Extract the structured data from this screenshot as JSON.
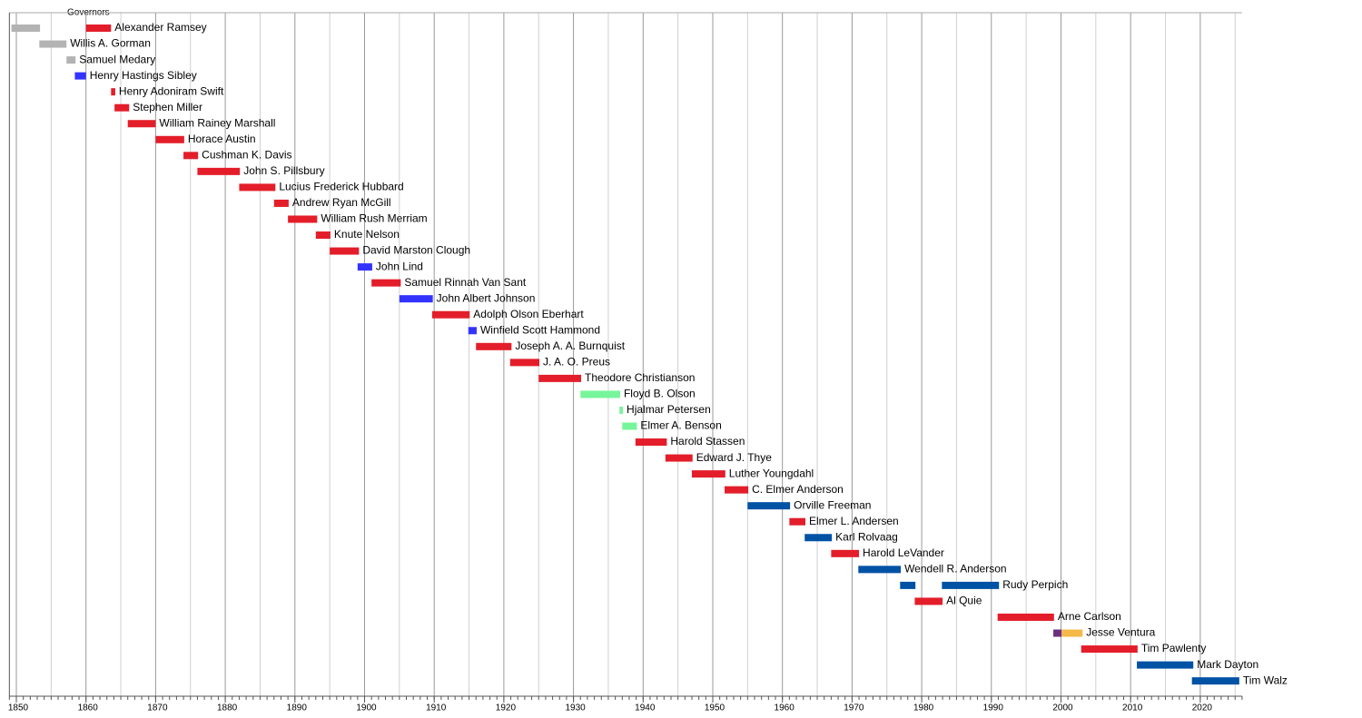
{
  "chart_data": {
    "type": "timeline",
    "title": "Governors",
    "xlim": [
      1849,
      2026
    ],
    "xticks": [
      1850,
      1860,
      1870,
      1880,
      1890,
      1900,
      1910,
      1920,
      1930,
      1940,
      1950,
      1960,
      1970,
      1980,
      1990,
      2000,
      2010,
      2020
    ],
    "xminorticks": [
      1855,
      1865,
      1875,
      1885,
      1895,
      1905,
      1915,
      1925,
      1935,
      1945,
      1955,
      1965,
      1975,
      1985,
      1995,
      2005,
      2015,
      2025
    ],
    "tick_step": 1,
    "grid": true,
    "rows": [
      {
        "label": "Alexander Ramsey",
        "segments": [
          {
            "start": 1849.3,
            "end": 1853.4,
            "color": "#b3b3b3"
          },
          {
            "start": 1860.0,
            "end": 1863.6,
            "color": "#e31e2a"
          }
        ]
      },
      {
        "label": "Willis A. Gorman",
        "segments": [
          {
            "start": 1853.3,
            "end": 1857.2,
            "color": "#b3b3b3"
          }
        ]
      },
      {
        "label": "Samuel Medary",
        "segments": [
          {
            "start": 1857.2,
            "end": 1858.5,
            "color": "#b3b3b3"
          }
        ]
      },
      {
        "label": "Henry Hastings Sibley",
        "segments": [
          {
            "start": 1858.4,
            "end": 1860.0,
            "color": "#3333ff"
          }
        ]
      },
      {
        "label": "Henry Adoniram Swift",
        "segments": [
          {
            "start": 1863.6,
            "end": 1864.2,
            "color": "#e31e2a"
          }
        ]
      },
      {
        "label": "Stephen Miller",
        "segments": [
          {
            "start": 1864.1,
            "end": 1866.2,
            "color": "#e31e2a"
          }
        ]
      },
      {
        "label": "William Rainey Marshall",
        "segments": [
          {
            "start": 1866.0,
            "end": 1870.0,
            "color": "#e31e2a"
          }
        ]
      },
      {
        "label": "Horace Austin",
        "segments": [
          {
            "start": 1870.0,
            "end": 1874.1,
            "color": "#e31e2a"
          }
        ]
      },
      {
        "label": "Cushman K. Davis",
        "segments": [
          {
            "start": 1874.0,
            "end": 1876.1,
            "color": "#e31e2a"
          }
        ]
      },
      {
        "label": "John S. Pillsbury",
        "segments": [
          {
            "start": 1876.0,
            "end": 1882.1,
            "color": "#e31e2a"
          }
        ]
      },
      {
        "label": "Lucius Frederick Hubbard",
        "segments": [
          {
            "start": 1882.0,
            "end": 1887.2,
            "color": "#e31e2a"
          }
        ]
      },
      {
        "label": "Andrew Ryan McGill",
        "segments": [
          {
            "start": 1887.0,
            "end": 1889.1,
            "color": "#e31e2a"
          }
        ]
      },
      {
        "label": "William Rush Merriam",
        "segments": [
          {
            "start": 1889.0,
            "end": 1893.2,
            "color": "#e31e2a"
          }
        ]
      },
      {
        "label": "Knute Nelson",
        "segments": [
          {
            "start": 1893.0,
            "end": 1895.1,
            "color": "#e31e2a"
          }
        ]
      },
      {
        "label": "David Marston Clough",
        "segments": [
          {
            "start": 1895.0,
            "end": 1899.2,
            "color": "#e31e2a"
          }
        ]
      },
      {
        "label": "John Lind",
        "segments": [
          {
            "start": 1899.0,
            "end": 1901.1,
            "color": "#3333ff"
          }
        ]
      },
      {
        "label": "Samuel Rinnah Van Sant",
        "segments": [
          {
            "start": 1901.0,
            "end": 1905.2,
            "color": "#e31e2a"
          }
        ]
      },
      {
        "label": "John Albert Johnson",
        "segments": [
          {
            "start": 1905.0,
            "end": 1909.8,
            "color": "#3333ff"
          }
        ]
      },
      {
        "label": "Adolph Olson Eberhart",
        "segments": [
          {
            "start": 1909.7,
            "end": 1915.1,
            "color": "#e31e2a"
          }
        ]
      },
      {
        "label": "Winfield Scott Hammond",
        "segments": [
          {
            "start": 1914.9,
            "end": 1916.1,
            "color": "#3333ff"
          }
        ]
      },
      {
        "label": "Joseph A. A. Burnquist",
        "segments": [
          {
            "start": 1916.0,
            "end": 1921.1,
            "color": "#e31e2a"
          }
        ]
      },
      {
        "label": "J. A. O. Preus",
        "segments": [
          {
            "start": 1920.9,
            "end": 1925.1,
            "color": "#e31e2a"
          }
        ]
      },
      {
        "label": "Theodore Christianson",
        "segments": [
          {
            "start": 1925.0,
            "end": 1931.1,
            "color": "#e31e2a"
          }
        ]
      },
      {
        "label": "Floyd B. Olson",
        "segments": [
          {
            "start": 1931.0,
            "end": 1936.7,
            "color": "#77f59a"
          }
        ]
      },
      {
        "label": "Hjalmar Petersen",
        "segments": [
          {
            "start": 1936.6,
            "end": 1937.1,
            "color": "#77f59a"
          }
        ]
      },
      {
        "label": "Elmer A. Benson",
        "segments": [
          {
            "start": 1937.0,
            "end": 1939.1,
            "color": "#77f59a"
          }
        ]
      },
      {
        "label": "Harold Stassen",
        "segments": [
          {
            "start": 1938.9,
            "end": 1943.4,
            "color": "#e31e2a"
          }
        ]
      },
      {
        "label": "Edward J. Thye",
        "segments": [
          {
            "start": 1943.2,
            "end": 1947.1,
            "color": "#e31e2a"
          }
        ]
      },
      {
        "label": "Luther Youngdahl",
        "segments": [
          {
            "start": 1947.0,
            "end": 1951.8,
            "color": "#e31e2a"
          }
        ]
      },
      {
        "label": "C. Elmer Anderson",
        "segments": [
          {
            "start": 1951.7,
            "end": 1955.1,
            "color": "#e31e2a"
          }
        ]
      },
      {
        "label": "Orville Freeman",
        "segments": [
          {
            "start": 1955.0,
            "end": 1961.1,
            "color": "#0052a5"
          }
        ]
      },
      {
        "label": "Elmer L. Andersen",
        "segments": [
          {
            "start": 1961.0,
            "end": 1963.3,
            "color": "#e31e2a"
          }
        ]
      },
      {
        "label": "Karl Rolvaag",
        "segments": [
          {
            "start": 1963.2,
            "end": 1967.1,
            "color": "#0052a5"
          }
        ]
      },
      {
        "label": "Harold LeVander",
        "segments": [
          {
            "start": 1967.0,
            "end": 1971.0,
            "color": "#e31e2a"
          }
        ]
      },
      {
        "label": "Wendell R. Anderson",
        "segments": [
          {
            "start": 1970.9,
            "end": 1977.0,
            "color": "#0052a5"
          }
        ]
      },
      {
        "label": "Rudy Perpich",
        "segments": [
          {
            "start": 1976.9,
            "end": 1979.1,
            "color": "#0052a5"
          },
          {
            "start": 1982.9,
            "end": 1991.1,
            "color": "#0052a5"
          }
        ]
      },
      {
        "label": "Al Quie",
        "segments": [
          {
            "start": 1979.0,
            "end": 1983.0,
            "color": "#e31e2a"
          }
        ]
      },
      {
        "label": "Arne Carlson",
        "segments": [
          {
            "start": 1990.9,
            "end": 1999.0,
            "color": "#e31e2a"
          }
        ]
      },
      {
        "label": "Jesse Ventura",
        "segments": [
          {
            "start": 1998.9,
            "end": 2000.1,
            "color": "#6b2f7f"
          },
          {
            "start": 2000.1,
            "end": 2003.1,
            "color": "#f5b94a"
          }
        ]
      },
      {
        "label": "Tim Pawlenty",
        "segments": [
          {
            "start": 2002.9,
            "end": 2011.0,
            "color": "#e31e2a"
          }
        ]
      },
      {
        "label": "Mark Dayton",
        "segments": [
          {
            "start": 2010.9,
            "end": 2019.0,
            "color": "#0052a5"
          }
        ]
      },
      {
        "label": "Tim Walz",
        "segments": [
          {
            "start": 2018.8,
            "end": 2025.6,
            "color": "#0052a5"
          }
        ]
      }
    ]
  }
}
